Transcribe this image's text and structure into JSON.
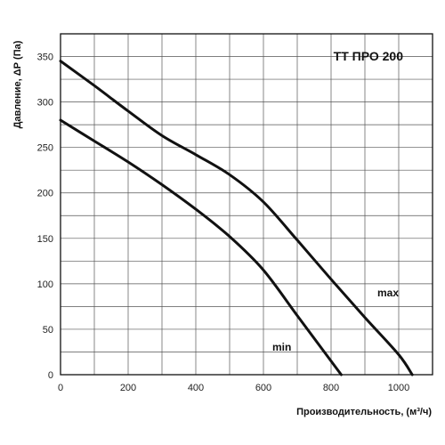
{
  "chart_data": {
    "type": "line",
    "title": "ТТ ПРО 200",
    "xlabel": "Производительность, (м³/ч)",
    "ylabel": "Давление, ΔР (Па)",
    "xlim": [
      0,
      1100
    ],
    "ylim": [
      0,
      375
    ],
    "x_ticks": [
      0,
      200,
      400,
      600,
      800,
      1000
    ],
    "y_ticks": [
      0,
      50,
      100,
      150,
      200,
      250,
      300,
      350
    ],
    "grid": true,
    "series": [
      {
        "name": "max",
        "x": [
          0,
          100,
          200,
          300,
          400,
          500,
          600,
          700,
          800,
          900,
          1000,
          1040
        ],
        "y": [
          345,
          318,
          290,
          263,
          242,
          220,
          190,
          148,
          105,
          63,
          22,
          0
        ]
      },
      {
        "name": "min",
        "x": [
          0,
          100,
          200,
          300,
          400,
          500,
          600,
          700,
          780,
          830
        ],
        "y": [
          280,
          257,
          234,
          209,
          182,
          152,
          115,
          65,
          25,
          0
        ]
      }
    ]
  }
}
